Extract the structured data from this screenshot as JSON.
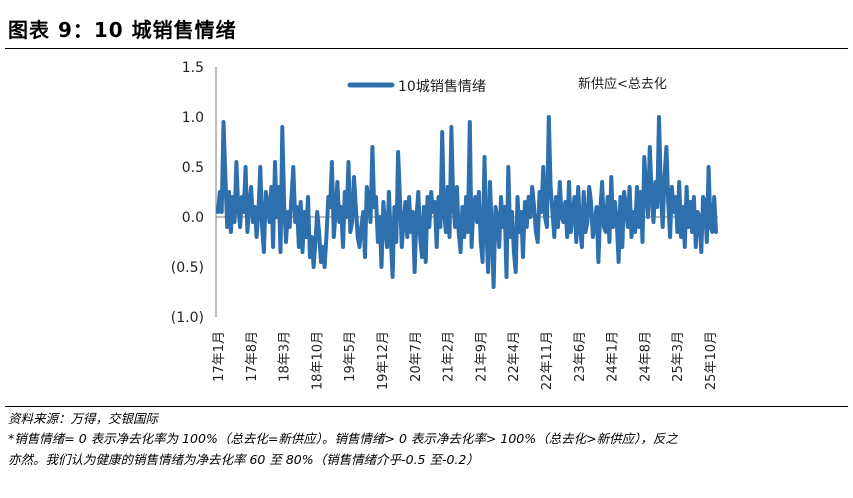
{
  "header": {
    "title": "图表 9：10 城销售情绪"
  },
  "footer": {
    "source": "资料来源：万得，交银国际",
    "note_line1": "*销售情绪= 0 表示净去化率为 100%（总去化=新供应）。销售情绪> 0 表示净去化率> 100%（总去化>新供应），反之",
    "note_line2": "亦然。我们认为健康的销售情绪为净去化率 60 至 80%（销售情绪介乎-0.5 至-0.2）"
  },
  "chart_data": {
    "type": "line",
    "title": "",
    "xlabel": "",
    "ylabel": "",
    "ylim": [
      -1.0,
      1.5
    ],
    "yticks": [
      "1.5",
      "1.0",
      "0.5",
      "0.0",
      "(0.5)",
      "(1.0)"
    ],
    "ytick_values": [
      1.5,
      1.0,
      0.5,
      0.0,
      -0.5,
      -1.0
    ],
    "xtick_labels": [
      "17年1月",
      "17年8月",
      "18年3月",
      "18年10月",
      "19年5月",
      "19年12月",
      "20年7月",
      "21年2月",
      "21年9月",
      "22年4月",
      "22年11月",
      "23年6月",
      "24年1月",
      "24年8月",
      "25年3月",
      "25年10月"
    ],
    "legend": {
      "placement": "top-center",
      "color": "#2e6fad"
    },
    "annotation": "新供应<总去化",
    "grid": false,
    "series": [
      {
        "name": "10城销售情绪",
        "color": "#2e6fad",
        "values": [
          0.05,
          0.25,
          0.05,
          0.95,
          0.4,
          -0.1,
          0.25,
          -0.15,
          0.2,
          -0.05,
          0.55,
          0.1,
          -0.1,
          0.2,
          0.05,
          0.5,
          -0.15,
          0.1,
          0.3,
          -0.05,
          0.1,
          -0.2,
          0.05,
          0.5,
          -0.1,
          -0.35,
          0.25,
          0.15,
          -0.05,
          0.3,
          -0.3,
          0.55,
          0.0,
          0.3,
          -0.35,
          0.9,
          0.1,
          -0.25,
          0.05,
          -0.1,
          0.2,
          0.5,
          -0.05,
          0.1,
          -0.3,
          0.15,
          -0.35,
          0.05,
          -0.2,
          0.2,
          -0.4,
          -0.2,
          -0.5,
          -0.25,
          0.05,
          -0.15,
          -0.45,
          -0.3,
          -0.5,
          -0.2,
          0.2,
          0.1,
          0.55,
          -0.2,
          0.05,
          0.35,
          -0.05,
          0.1,
          -0.3,
          0.25,
          0.0,
          0.55,
          -0.15,
          -0.05,
          0.4,
          0.1,
          -0.2,
          -0.3,
          -0.1,
          0.05,
          -0.4,
          0.3,
          0.15,
          -0.05,
          0.7,
          0.1,
          0.2,
          -0.25,
          0.0,
          -0.5,
          0.15,
          -0.1,
          -0.3,
          0.25,
          -0.2,
          -0.6,
          0.1,
          -0.25,
          0.65,
          0.2,
          -0.3,
          -0.05,
          0.15,
          -0.2,
          0.2,
          -0.15,
          0.05,
          -0.55,
          0.0,
          0.25,
          -0.2,
          -0.4,
          0.1,
          -0.45,
          0.2,
          -0.1,
          0.25,
          0.05,
          0.15,
          -0.3,
          0.2,
          -0.1,
          0.85,
          0.05,
          -0.15,
          0.3,
          -0.2,
          0.9,
          0.15,
          -0.1,
          0.3,
          -0.15,
          -0.35,
          0.1,
          -0.2,
          0.2,
          -0.15,
          0.95,
          -0.3,
          0.1,
          0.2,
          -0.05,
          0.25,
          -0.25,
          -0.45,
          0.6,
          -0.1,
          -0.55,
          0.35,
          -0.15,
          -0.7,
          0.1,
          0.0,
          -0.3,
          0.2,
          -0.1,
          0.1,
          -0.6,
          0.5,
          -0.2,
          0.05,
          -0.35,
          -0.55,
          0.2,
          -0.15,
          0.05,
          -0.4,
          0.15,
          -0.1,
          0.2,
          0.0,
          0.3,
          0.1,
          -0.15,
          -0.25,
          0.25,
          0.05,
          0.5,
          0.0,
          -0.1,
          1.0,
          0.3,
          0.05,
          -0.2,
          0.2,
          -0.1,
          0.35,
          0.0,
          -0.05,
          0.15,
          -0.2,
          0.35,
          -0.15,
          0.05,
          0.2,
          -0.25,
          0.3,
          -0.1,
          -0.3,
          0.25,
          -0.15,
          -0.05,
          0.3,
          0.15,
          -0.2,
          -0.05,
          0.1,
          -0.45,
          0.05,
          0.35,
          -0.1,
          -0.15,
          0.2,
          -0.25,
          0.4,
          -0.1,
          0.15,
          -0.05,
          -0.45,
          0.2,
          -0.3,
          0.25,
          0.1,
          -0.1,
          0.3,
          -0.2,
          0.05,
          -0.15,
          0.3,
          -0.1,
          0.25,
          -0.25,
          0.6,
          0.25,
          0.0,
          0.7,
          0.2,
          -0.05,
          0.35,
          0.1,
          1.0,
          0.25,
          -0.1,
          0.4,
          0.7,
          0.15,
          -0.2,
          0.3,
          0.05,
          0.2,
          -0.15,
          0.35,
          -0.2,
          0.1,
          -0.3,
          0.3,
          -0.1,
          0.15,
          -0.15,
          0.2,
          -0.3,
          0.05,
          0.0,
          -0.35,
          0.2,
          0.15,
          -0.25,
          0.5,
          -0.1,
          -0.15,
          0.2,
          -0.15
        ]
      }
    ]
  }
}
